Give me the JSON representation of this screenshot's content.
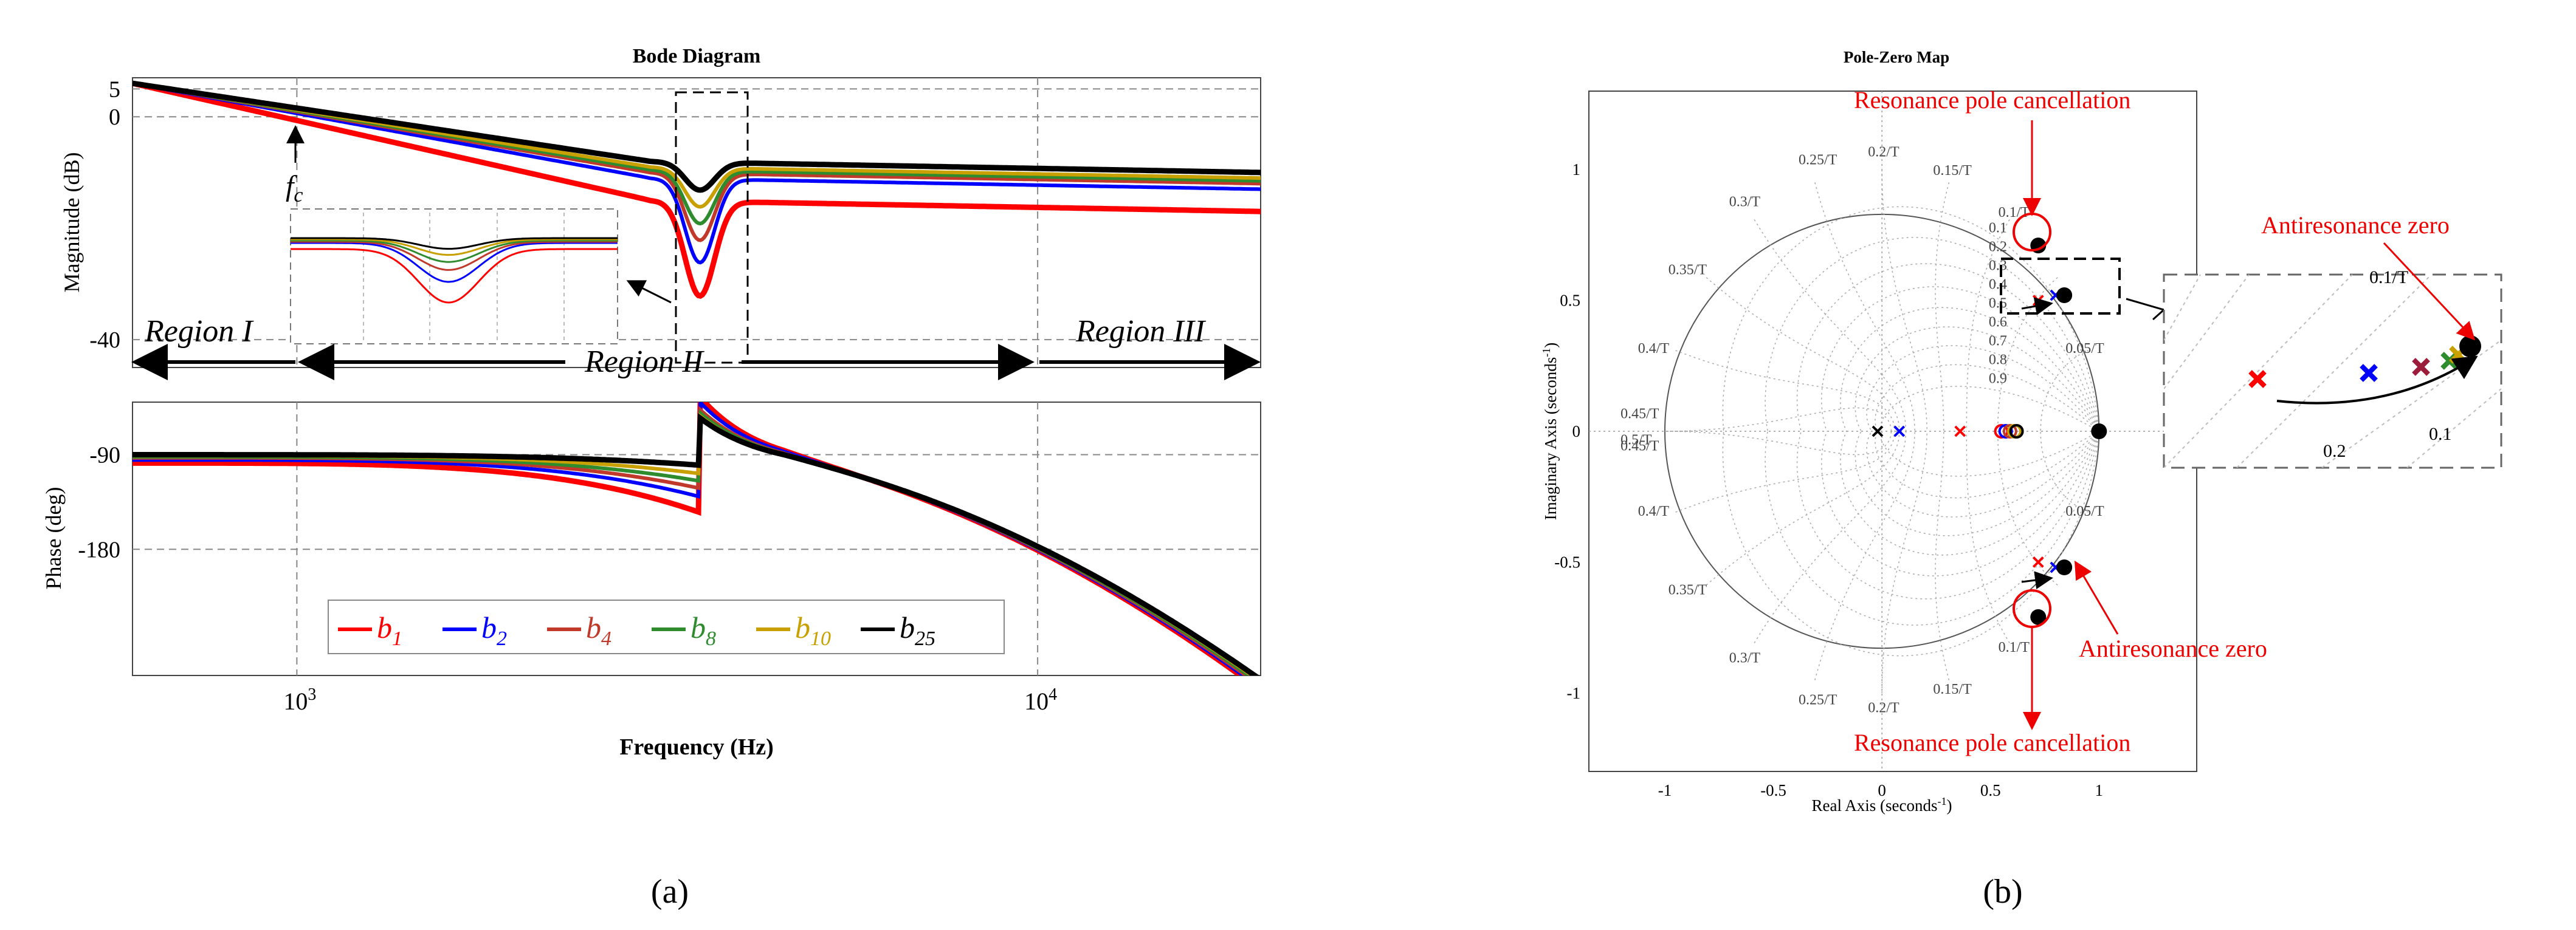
{
  "chart_data": [
    {
      "type": "line",
      "panel_label": "(a)",
      "title": "Bode Diagram",
      "xlabel": "Frequency  (Hz)",
      "xscale": "log",
      "xlim": [
        600,
        20000
      ],
      "x_ticks": [
        {
          "base": "10",
          "exp": "3",
          "value": 1000
        },
        {
          "base": "10",
          "exp": "4",
          "value": 10000
        }
      ],
      "magnitude": {
        "ylabel": "Magnitude (dB)",
        "ylim": [
          -45,
          7
        ],
        "y_ticks": [
          "5",
          "0",
          "-40"
        ],
        "y_tick_values": [
          5,
          0,
          -40
        ],
        "annotations": {
          "fc": "f",
          "fc_sub": "c",
          "region1": "Region I",
          "region2": "Region II",
          "region3": "Region III"
        },
        "series": [
          {
            "name": "b1",
            "color": "#ff0000",
            "notch_hz": 3500,
            "notch_db": -33,
            "hf_db": -17
          },
          {
            "name": "b2",
            "color": "#0000ff",
            "notch_hz": 3500,
            "notch_db": -27,
            "hf_db": -13
          },
          {
            "name": "b4",
            "color": "#c0392b",
            "notch_hz": 3500,
            "notch_db": -23,
            "hf_db": -12
          },
          {
            "name": "b8",
            "color": "#2e8b2e",
            "notch_hz": 3500,
            "notch_db": -20,
            "hf_db": -11.5
          },
          {
            "name": "b10",
            "color": "#c8a000",
            "notch_hz": 3500,
            "notch_db": -17,
            "hf_db": -11
          },
          {
            "name": "b25",
            "color": "#000000",
            "notch_hz": 3500,
            "notch_db": -14,
            "hf_db": -10
          }
        ]
      },
      "phase": {
        "ylabel": "Phase (deg)",
        "y_ticks": [
          "-90",
          "-180"
        ],
        "y_tick_values": [
          -90,
          -180
        ],
        "legend": [
          {
            "base": "b",
            "sub": "1",
            "color": "#ff0000"
          },
          {
            "base": "b",
            "sub": "2",
            "color": "#0000ff"
          },
          {
            "base": "b",
            "sub": "4",
            "color": "#c0392b"
          },
          {
            "base": "b",
            "sub": "8",
            "color": "#2e8b2e"
          },
          {
            "base": "b",
            "sub": "10",
            "color": "#c8a000"
          },
          {
            "base": "b",
            "sub": "25",
            "color": "#000000"
          }
        ]
      }
    },
    {
      "type": "scatter",
      "panel_label": "(b)",
      "title": "Pole-Zero Map",
      "xlabel": "Real Axis (seconds",
      "ylabel": "Imaginary Axis (seconds",
      "axis_unit_exp": "-1",
      "xlim": [
        -1.35,
        1.45
      ],
      "ylim": [
        -1.3,
        1.3
      ],
      "x_ticks": [
        "-1",
        "-0.5",
        "0",
        "0.5",
        "1"
      ],
      "x_tick_values": [
        -1,
        -0.5,
        0,
        0.5,
        1
      ],
      "y_ticks": [
        "1",
        "0.5",
        "0",
        "-0.5",
        "-1"
      ],
      "y_tick_values": [
        1,
        0.5,
        0,
        -0.5,
        -1
      ],
      "damping_labels": [
        "0.1",
        "0.2",
        "0.3",
        "0.4",
        "0.5",
        "0.6",
        "0.7",
        "0.8",
        "0.9"
      ],
      "frequency_labels": [
        "0.05/T",
        "0.1/T",
        "0.15/T",
        "0.2/T",
        "0.25/T",
        "0.3/T",
        "0.35/T",
        "0.4/T",
        "0.45/T",
        "0.5/T"
      ],
      "annotations": {
        "resonance_top": "Resonance pole  cancellation",
        "resonance_bottom": "Resonance pole  cancellation",
        "antiresonance_inset": "Antiresonance zero",
        "antiresonance_bottom": "Antiresonance zero"
      },
      "inset_labels": {
        "freq": "0.1/T",
        "d1": "0.2",
        "d2": "0.1"
      },
      "poles": [
        {
          "x": -0.02,
          "y": 0.0,
          "color": "#000000"
        },
        {
          "x": 0.08,
          "y": 0.0,
          "color": "#0000ff"
        },
        {
          "x": 0.36,
          "y": 0.0,
          "color": "#ff0000"
        },
        {
          "x": 0.72,
          "y": 0.5,
          "color": "#ff0000"
        },
        {
          "x": 0.8,
          "y": 0.52,
          "color": "#0000ff"
        },
        {
          "x": 0.72,
          "y": -0.5,
          "color": "#ff0000"
        },
        {
          "x": 0.8,
          "y": -0.52,
          "color": "#0000ff"
        }
      ],
      "zeros": [
        {
          "x": 0.55,
          "y": 0.0,
          "color": "#ff0000"
        },
        {
          "x": 0.57,
          "y": 0.0,
          "color": "#0000ff"
        },
        {
          "x": 0.59,
          "y": 0.0,
          "color": "#c0392b"
        },
        {
          "x": 0.61,
          "y": 0.0,
          "color": "#c8a000"
        },
        {
          "x": 0.62,
          "y": 0.0,
          "color": "#000000"
        }
      ],
      "black_points": [
        {
          "x": 0.72,
          "y": 0.71
        },
        {
          "x": 0.84,
          "y": 0.52
        },
        {
          "x": 1.0,
          "y": 0.0
        },
        {
          "x": 0.72,
          "y": -0.71
        },
        {
          "x": 0.84,
          "y": -0.52
        }
      ]
    }
  ]
}
